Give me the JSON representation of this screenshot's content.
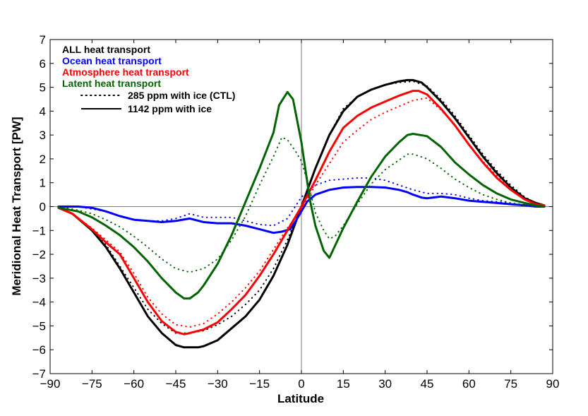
{
  "chart_data": {
    "type": "line",
    "xlabel": "Latitude",
    "ylabel": "Meridional Heat Transport [PW]",
    "xlim": [
      -90,
      90
    ],
    "ylim": [
      -7,
      7
    ],
    "xticks": [
      -90,
      -75,
      -60,
      -45,
      -30,
      -15,
      0,
      15,
      30,
      45,
      60,
      75,
      90
    ],
    "yticks": [
      -7,
      -6,
      -5,
      -4,
      -3,
      -2,
      -1,
      0,
      1,
      2,
      3,
      4,
      5,
      6,
      7
    ],
    "reference_lines": [
      "x=0",
      "y=0"
    ],
    "legend_position": "top-left",
    "legend": {
      "colors": [
        {
          "label": "ALL heat transport",
          "color": "#000000"
        },
        {
          "label": "Ocean heat transport",
          "color": "#0000ff"
        },
        {
          "label": "Atmosphere heat transport",
          "color": "#ff0000"
        },
        {
          "label": "Latent heat transport",
          "color": "#006400"
        }
      ],
      "styles": [
        {
          "label": "285 ppm with ice (CTL)",
          "dash": "dotted"
        },
        {
          "label": "1142 ppm with ice",
          "dash": "solid"
        }
      ]
    },
    "series": [
      {
        "label": "ALL heat transport",
        "color": "#000000",
        "dash": "solid",
        "x": [
          -87,
          -82,
          -75,
          -70,
          -65,
          -60,
          -55,
          -50,
          -45,
          -42,
          -40,
          -37,
          -35,
          -30,
          -25,
          -20,
          -15,
          -10,
          -5,
          0,
          5,
          10,
          15,
          20,
          25,
          30,
          35,
          38,
          40,
          43,
          45,
          50,
          55,
          60,
          65,
          70,
          75,
          80,
          84,
          87
        ],
        "y": [
          -0.05,
          -0.3,
          -1.0,
          -1.7,
          -2.6,
          -3.6,
          -4.6,
          -5.3,
          -5.8,
          -5.9,
          -5.9,
          -5.9,
          -5.85,
          -5.6,
          -5.1,
          -4.6,
          -3.9,
          -2.9,
          -1.6,
          0.0,
          1.6,
          3.0,
          4.0,
          4.6,
          4.9,
          5.1,
          5.25,
          5.3,
          5.3,
          5.2,
          5.0,
          4.4,
          3.7,
          2.9,
          2.1,
          1.4,
          0.8,
          0.35,
          0.15,
          0.05
        ]
      },
      {
        "label": "ALL heat transport",
        "color": "#000000",
        "dash": "dotted",
        "x": [
          -87,
          -82,
          -75,
          -70,
          -65,
          -60,
          -55,
          -50,
          -45,
          -40,
          -35,
          -30,
          -25,
          -20,
          -15,
          -10,
          -5,
          0,
          5,
          10,
          15,
          20,
          25,
          30,
          35,
          40,
          45,
          50,
          55,
          60,
          65,
          70,
          75,
          80,
          84,
          87
        ],
        "y": [
          -0.05,
          -0.3,
          -1.0,
          -1.6,
          -2.5,
          -3.4,
          -4.3,
          -4.9,
          -5.3,
          -5.3,
          -5.2,
          -4.95,
          -4.6,
          -4.1,
          -3.5,
          -2.6,
          -1.4,
          0.0,
          1.6,
          3.0,
          4.1,
          4.6,
          4.9,
          5.1,
          5.2,
          5.25,
          5.05,
          4.5,
          3.8,
          3.0,
          2.2,
          1.5,
          0.9,
          0.4,
          0.15,
          0.05
        ]
      },
      {
        "label": "Ocean heat transport",
        "color": "#0000ff",
        "dash": "solid",
        "x": [
          -87,
          -80,
          -75,
          -70,
          -65,
          -60,
          -55,
          -50,
          -45,
          -40,
          -35,
          -30,
          -25,
          -20,
          -15,
          -10,
          -7,
          -4,
          -2,
          0,
          2,
          5,
          10,
          15,
          20,
          25,
          30,
          35,
          38,
          40,
          43,
          45,
          50,
          55,
          60,
          65,
          70,
          75,
          80,
          84,
          87
        ],
        "y": [
          0,
          0,
          -0.05,
          -0.2,
          -0.4,
          -0.55,
          -0.6,
          -0.65,
          -0.6,
          -0.5,
          -0.65,
          -0.7,
          -0.7,
          -0.8,
          -0.95,
          -1.1,
          -1.05,
          -0.95,
          -0.6,
          -0.2,
          0.2,
          0.5,
          0.7,
          0.8,
          0.82,
          0.82,
          0.8,
          0.7,
          0.6,
          0.5,
          0.38,
          0.35,
          0.42,
          0.35,
          0.25,
          0.2,
          0.15,
          0.1,
          0.05,
          0.0,
          0.0
        ]
      },
      {
        "label": "Ocean heat transport",
        "color": "#0000ff",
        "dash": "dotted",
        "x": [
          -87,
          -80,
          -75,
          -70,
          -65,
          -60,
          -55,
          -50,
          -45,
          -40,
          -35,
          -30,
          -25,
          -20,
          -15,
          -10,
          -5,
          0,
          5,
          10,
          15,
          20,
          25,
          30,
          35,
          40,
          45,
          50,
          55,
          60,
          65,
          70,
          75,
          80,
          84,
          87
        ],
        "y": [
          0,
          0,
          -0.1,
          -0.2,
          -0.4,
          -0.55,
          -0.6,
          -0.6,
          -0.5,
          -0.3,
          -0.45,
          -0.45,
          -0.45,
          -0.6,
          -0.75,
          -0.8,
          -0.5,
          0.4,
          0.9,
          1.1,
          1.15,
          1.2,
          1.2,
          1.1,
          0.9,
          0.7,
          0.55,
          0.55,
          0.5,
          0.35,
          0.25,
          0.2,
          0.15,
          0.08,
          0.02,
          0.0
        ]
      },
      {
        "label": "Atmosphere heat transport",
        "color": "#ff0000",
        "dash": "solid",
        "x": [
          -87,
          -82,
          -75,
          -70,
          -65,
          -60,
          -55,
          -50,
          -45,
          -42,
          -40,
          -35,
          -30,
          -25,
          -20,
          -15,
          -10,
          -5,
          0,
          5,
          10,
          15,
          20,
          25,
          30,
          35,
          40,
          42,
          45,
          50,
          55,
          60,
          65,
          70,
          75,
          80,
          84,
          87
        ],
        "y": [
          -0.05,
          -0.3,
          -0.95,
          -1.5,
          -2.0,
          -3.0,
          -4.0,
          -4.8,
          -5.25,
          -5.35,
          -5.3,
          -5.15,
          -4.85,
          -4.3,
          -3.7,
          -2.9,
          -2.0,
          -1.0,
          0.0,
          1.1,
          2.3,
          3.3,
          3.8,
          4.15,
          4.4,
          4.65,
          4.85,
          4.85,
          4.7,
          4.1,
          3.4,
          2.6,
          1.85,
          1.2,
          0.7,
          0.3,
          0.1,
          0.05
        ]
      },
      {
        "label": "Atmosphere heat transport",
        "color": "#ff0000",
        "dash": "dotted",
        "x": [
          -87,
          -82,
          -75,
          -70,
          -65,
          -60,
          -55,
          -50,
          -45,
          -40,
          -35,
          -30,
          -25,
          -20,
          -15,
          -10,
          -5,
          0,
          5,
          10,
          15,
          20,
          25,
          30,
          35,
          40,
          45,
          50,
          55,
          60,
          65,
          70,
          75,
          80,
          84,
          87
        ],
        "y": [
          -0.05,
          -0.3,
          -0.9,
          -1.4,
          -1.9,
          -2.8,
          -3.8,
          -4.5,
          -4.95,
          -5.05,
          -4.9,
          -4.5,
          -4.0,
          -3.4,
          -2.7,
          -1.8,
          -0.9,
          -0.1,
          0.9,
          1.8,
          2.7,
          3.2,
          3.65,
          3.95,
          4.2,
          4.45,
          4.55,
          4.05,
          3.4,
          2.6,
          1.9,
          1.3,
          0.75,
          0.3,
          0.1,
          0.05
        ]
      },
      {
        "label": "Latent heat transport",
        "color": "#006400",
        "dash": "solid",
        "x": [
          -87,
          -80,
          -75,
          -70,
          -65,
          -60,
          -55,
          -50,
          -45,
          -42,
          -40,
          -37,
          -35,
          -30,
          -25,
          -20,
          -15,
          -10,
          -8,
          -5,
          -3,
          0,
          3,
          5,
          8,
          10,
          12,
          15,
          20,
          25,
          30,
          35,
          38,
          40,
          45,
          50,
          55,
          60,
          65,
          70,
          75,
          80,
          84,
          87
        ],
        "y": [
          -0.05,
          -0.2,
          -0.45,
          -0.8,
          -1.2,
          -1.7,
          -2.3,
          -3.0,
          -3.6,
          -3.85,
          -3.85,
          -3.6,
          -3.3,
          -2.4,
          -1.2,
          0.2,
          1.6,
          3.1,
          4.25,
          4.8,
          4.5,
          2.7,
          0.3,
          -0.8,
          -1.85,
          -2.15,
          -1.65,
          -0.9,
          0.2,
          1.25,
          2.1,
          2.7,
          3.0,
          3.05,
          2.95,
          2.5,
          1.85,
          1.35,
          0.9,
          0.55,
          0.3,
          0.15,
          0.05,
          0.0
        ]
      },
      {
        "label": "Latent heat transport",
        "color": "#006400",
        "dash": "dotted",
        "x": [
          -87,
          -80,
          -75,
          -70,
          -65,
          -60,
          -55,
          -50,
          -45,
          -40,
          -35,
          -30,
          -25,
          -20,
          -15,
          -10,
          -7,
          -5,
          -2,
          0,
          3,
          5,
          8,
          10,
          12,
          15,
          20,
          25,
          30,
          35,
          38,
          40,
          45,
          50,
          55,
          60,
          65,
          70,
          75,
          80,
          84,
          87
        ],
        "y": [
          0,
          -0.15,
          -0.3,
          -0.55,
          -0.85,
          -1.25,
          -1.7,
          -2.2,
          -2.6,
          -2.75,
          -2.6,
          -2.2,
          -1.4,
          -0.4,
          0.9,
          2.1,
          2.9,
          2.8,
          2.3,
          1.9,
          0.7,
          -0.25,
          -1.0,
          -1.35,
          -1.25,
          -0.8,
          0.1,
          0.95,
          1.55,
          1.95,
          2.2,
          2.2,
          2.0,
          1.6,
          1.15,
          0.8,
          0.5,
          0.3,
          0.15,
          0.05,
          0.0,
          0.0
        ]
      }
    ]
  }
}
